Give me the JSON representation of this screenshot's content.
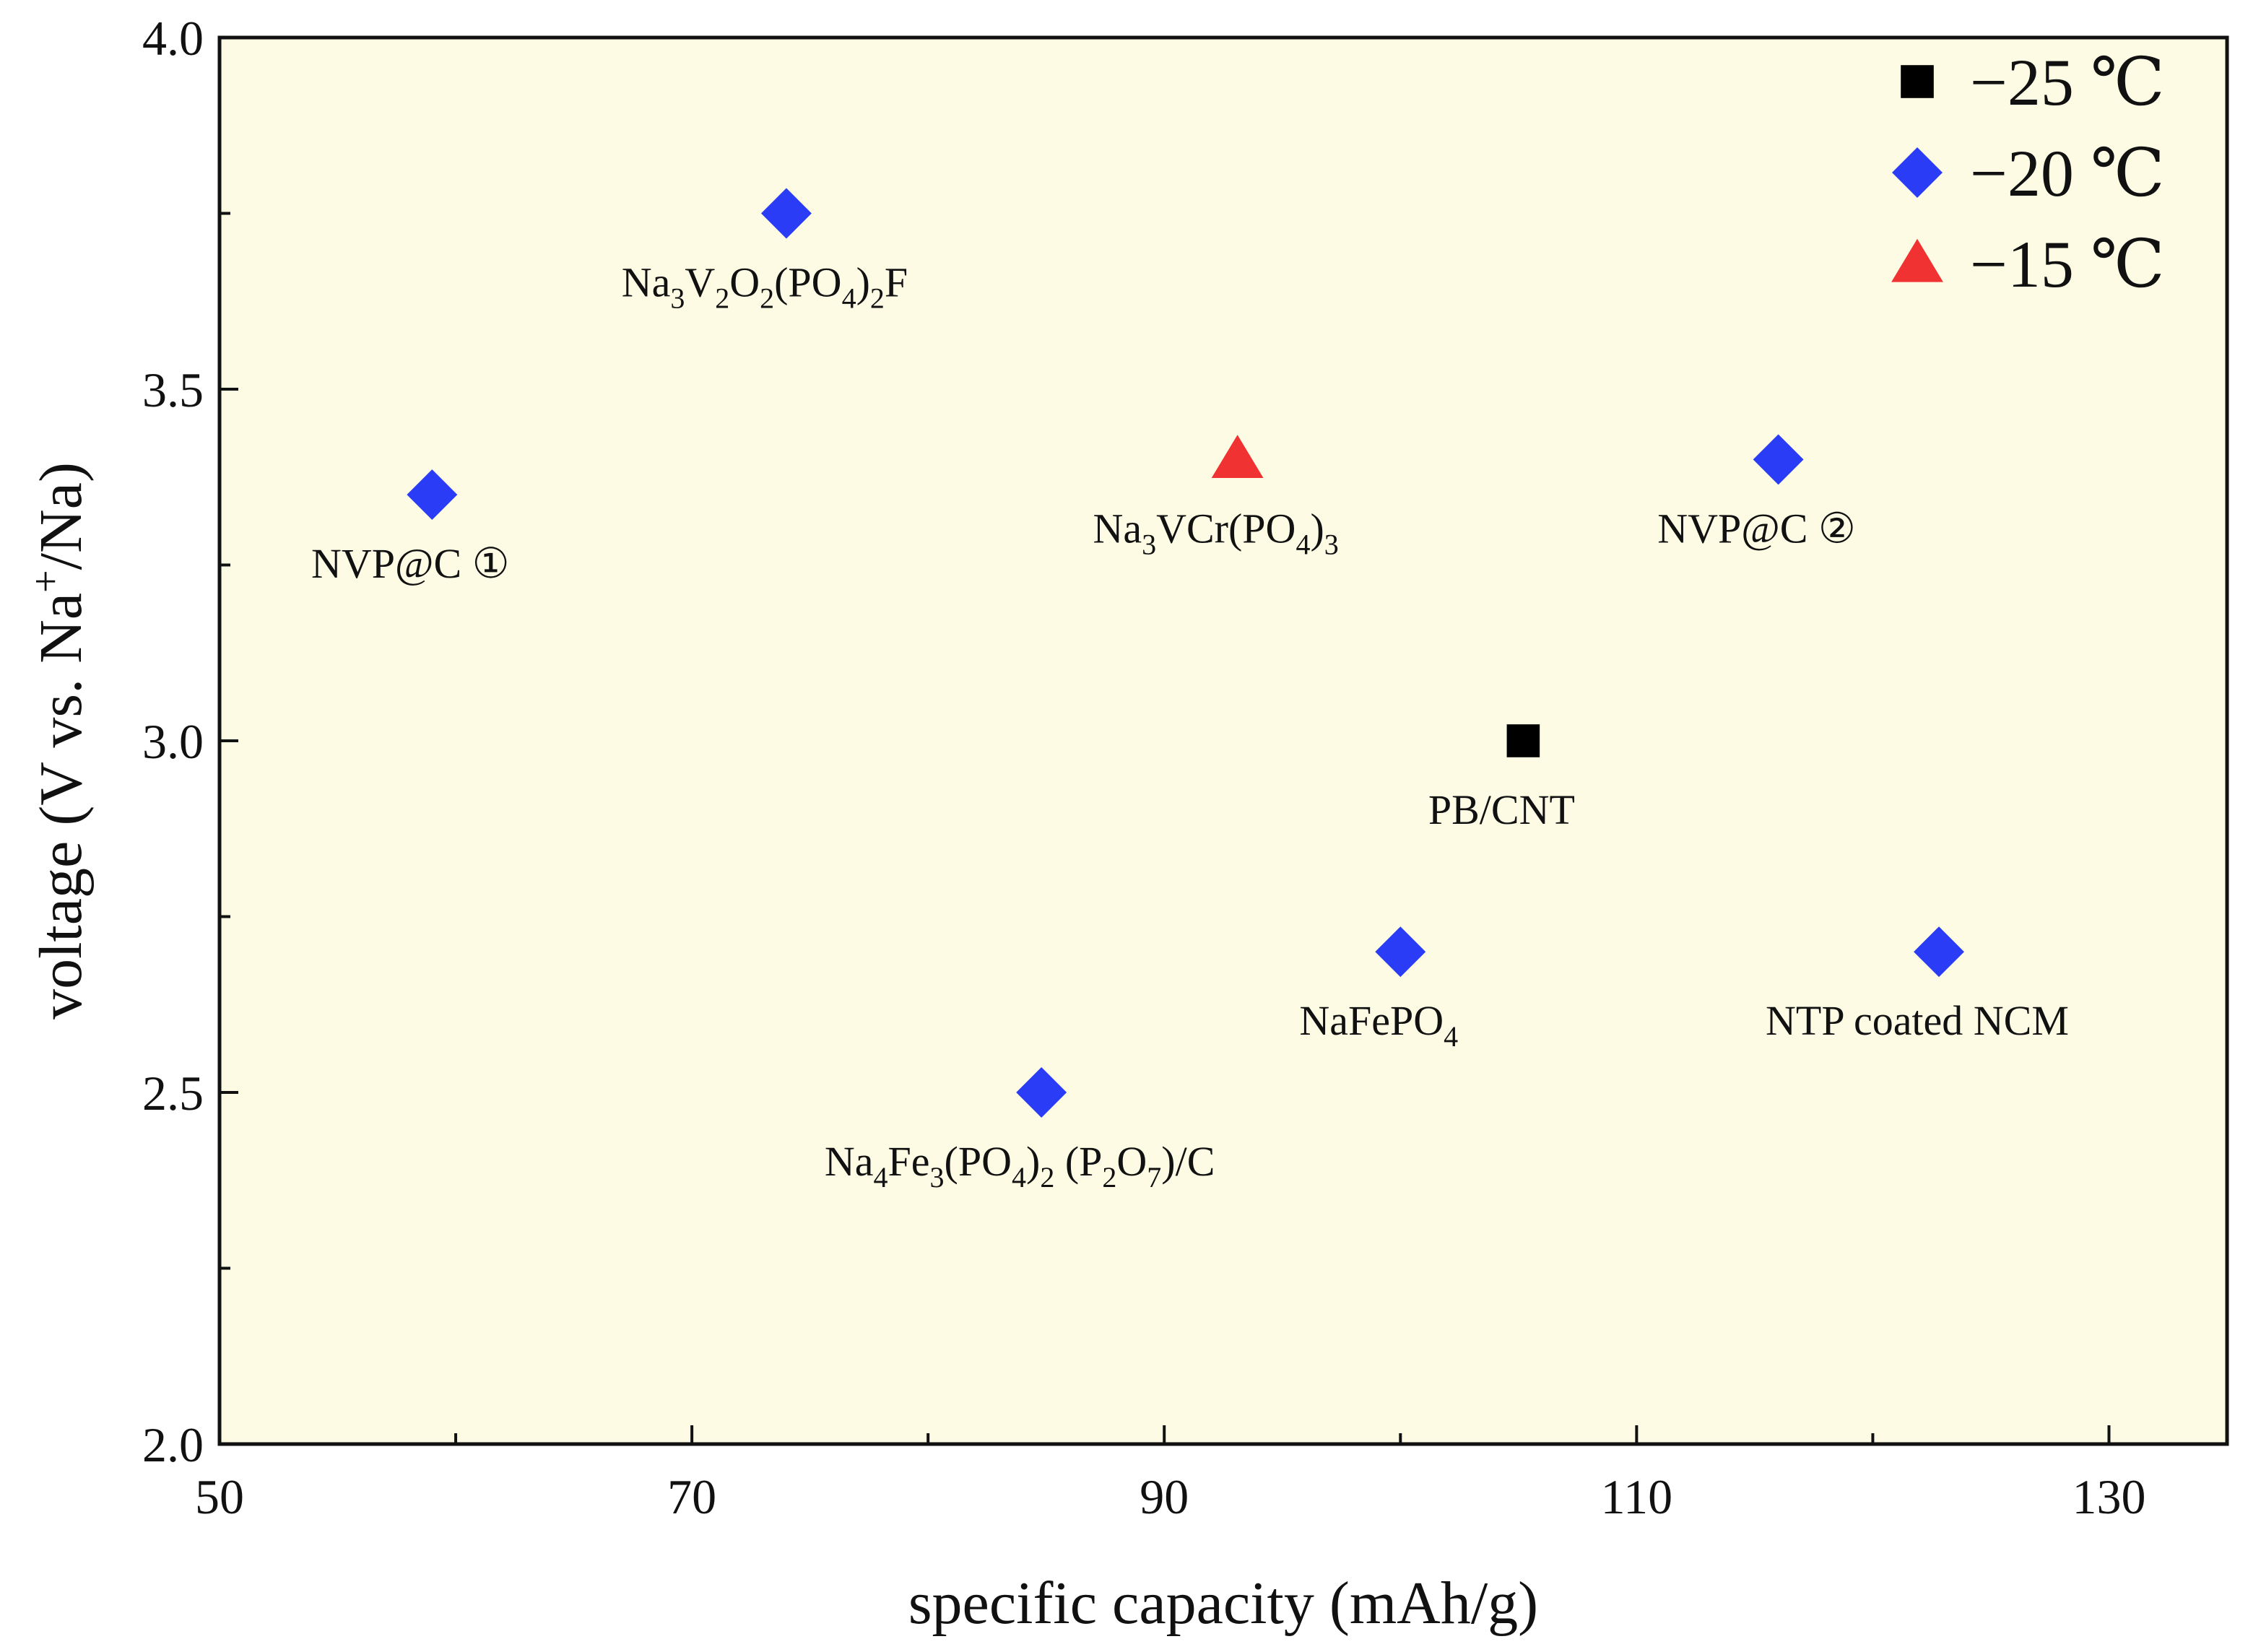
{
  "chart_data": {
    "type": "scatter",
    "title": "",
    "xlabel": "specific capacity (mAh/g)",
    "ylabel_parts": [
      "voltage (V vs. Na",
      "+",
      "/Na)"
    ],
    "xlim": [
      50,
      135
    ],
    "ylim": [
      2.0,
      4.0
    ],
    "xticks": [
      50,
      70,
      90,
      110,
      130
    ],
    "yticks": [
      2.0,
      2.5,
      3.0,
      3.5,
      4.0
    ],
    "ytick_labels": [
      "2.0",
      "2.5",
      "3.0",
      "3.5",
      "4.0"
    ],
    "grid": false,
    "background": "#fdfbe4",
    "legend_position": "top-right",
    "series": [
      {
        "name": "−25 ℃",
        "marker": "square",
        "color": "#000000",
        "points": [
          {
            "x": 105.2,
            "y": 3.0,
            "label": [
              [
                "PB/CNT",
                "n"
              ]
            ]
          }
        ]
      },
      {
        "name": "−20 ℃",
        "marker": "diamond",
        "color": "#2a3cf5",
        "points": [
          {
            "x": 59.0,
            "y": 3.35,
            "label": [
              [
                "NVP@C ①",
                "n"
              ]
            ]
          },
          {
            "x": 74.0,
            "y": 3.75,
            "label": [
              [
                "Na",
                "n"
              ],
              [
                "3",
                "sub"
              ],
              [
                "V",
                "n"
              ],
              [
                "2",
                "sub"
              ],
              [
                "O",
                "n"
              ],
              [
                "2",
                "sub"
              ],
              [
                "(PO",
                "n"
              ],
              [
                "4",
                "sub"
              ],
              [
                ")",
                "n"
              ],
              [
                "2",
                "sub"
              ],
              [
                "F",
                "n"
              ]
            ]
          },
          {
            "x": 84.8,
            "y": 2.5,
            "label": [
              [
                "Na",
                "n"
              ],
              [
                "4",
                "sub"
              ],
              [
                "Fe",
                "n"
              ],
              [
                "3",
                "sub"
              ],
              [
                "(PO",
                "n"
              ],
              [
                "4",
                "sub"
              ],
              [
                ")",
                "n"
              ],
              [
                "2",
                "sub"
              ],
              [
                " (P",
                "n"
              ],
              [
                "2",
                "sub"
              ],
              [
                "O",
                "n"
              ],
              [
                "7",
                "sub"
              ],
              [
                ")/C",
                "n"
              ]
            ]
          },
          {
            "x": 100.0,
            "y": 2.7,
            "label": [
              [
                "NaFePO",
                "n"
              ],
              [
                "4",
                "sub"
              ]
            ]
          },
          {
            "x": 116.0,
            "y": 3.4,
            "label": [
              [
                "NVP@C ②",
                "n"
              ]
            ]
          },
          {
            "x": 122.8,
            "y": 2.7,
            "label": [
              [
                "NTP coated NCM",
                "n"
              ]
            ]
          }
        ]
      },
      {
        "name": "−15 ℃",
        "marker": "triangle",
        "color": "#f03232",
        "points": [
          {
            "x": 93.1,
            "y": 3.4,
            "label": [
              [
                "Na",
                "n"
              ],
              [
                "3",
                "sub"
              ],
              [
                "VCr(PO",
                "n"
              ],
              [
                "4",
                "sub"
              ],
              [
                ")",
                "n"
              ],
              [
                "3",
                "sub"
              ]
            ]
          }
        ]
      }
    ]
  }
}
